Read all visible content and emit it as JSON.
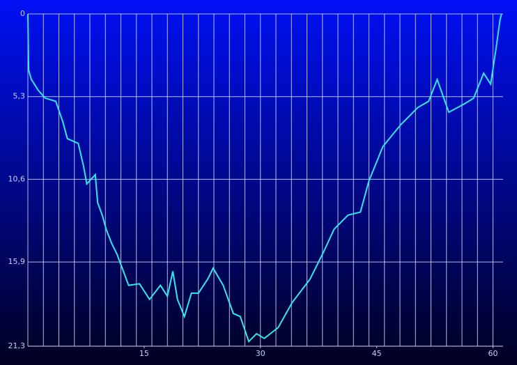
{
  "chart_data": {
    "type": "line",
    "x": [
      0,
      0.1,
      0.45,
      1.35,
      2.25,
      3.6,
      4.5,
      5.1,
      6.5,
      7.2,
      7.6,
      8.7,
      9.0,
      9.6,
      10.1,
      10.8,
      11.5,
      13.0,
      14.4,
      15.7,
      17.1,
      18.0,
      18.7,
      19.3,
      20.2,
      21.1,
      22.0,
      23.2,
      23.9,
      25.2,
      26.5,
      27.4,
      28.5,
      29.5,
      30.5,
      32.3,
      34.1,
      36.4,
      38.2,
      39.5,
      41.3,
      42.9,
      44.0,
      45.8,
      48.1,
      50.3,
      51.7,
      52.8,
      54.3,
      56.2,
      57.5,
      58.8,
      59.7,
      60.4,
      60.9,
      61.1
    ],
    "series": [
      {
        "color": "#33e8f2",
        "values": [
          0,
          3.6,
          4.2,
          4.9,
          5.4,
          5.6,
          6.9,
          8.0,
          8.3,
          9.8,
          10.9,
          10.3,
          12.1,
          12.9,
          13.8,
          14.7,
          15.4,
          17.4,
          17.3,
          18.3,
          17.4,
          18.1,
          16.5,
          18.3,
          19.4,
          17.9,
          17.9,
          17.0,
          16.3,
          17.4,
          19.2,
          19.4,
          21.0,
          20.5,
          20.8,
          20.1,
          18.5,
          17.0,
          15.2,
          13.8,
          12.9,
          12.7,
          10.7,
          8.5,
          7.1,
          6.0,
          5.6,
          4.2,
          6.3,
          5.8,
          5.4,
          3.8,
          4.5,
          2.2,
          0.4,
          0
        ]
      }
    ],
    "xlim": [
      0,
      61.3
    ],
    "xticks": [
      15,
      30,
      45,
      60
    ],
    "x_grid_step": 2,
    "ylim": [
      0,
      21.3
    ],
    "y_inverted": true,
    "yticks": [
      0,
      {
        "value": 5.3,
        "label": "5,3"
      },
      {
        "value": 10.6,
        "label": "10,6"
      },
      {
        "value": 15.9,
        "label": "15,9"
      },
      {
        "value": 21.3,
        "label": "21,3"
      }
    ],
    "grid": true
  }
}
